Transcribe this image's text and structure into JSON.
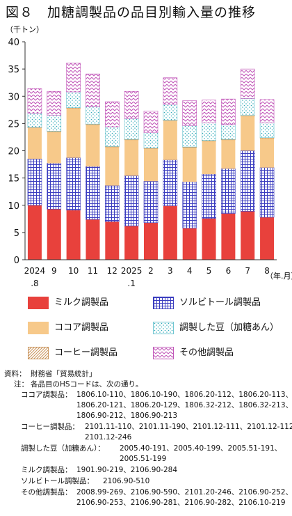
{
  "title": "図８　加糖調製品の品目別輸入量の推移",
  "unit_label": "（千トン）",
  "x_unit_label": "（年.月）",
  "colors": {
    "milk": "#e8413c",
    "sorbitol": "#3b3dbf",
    "cocoa": "#f7c98a",
    "bean": "#6fc6d1",
    "coffee": "#c9935a",
    "other": "#c155b8"
  },
  "legend": [
    {
      "key": "milk",
      "label": "ミルク調製品",
      "pattern": "solid"
    },
    {
      "key": "sorbitol",
      "label": "ソルビトール調製品",
      "pattern": "grid"
    },
    {
      "key": "cocoa",
      "label": "ココア調製品",
      "pattern": "solid"
    },
    {
      "key": "bean",
      "label": "調製した豆（加糖あん）",
      "pattern": "dots"
    },
    {
      "key": "coffee",
      "label": "コーヒー調製品",
      "pattern": "diagonal"
    },
    {
      "key": "other",
      "label": "その他調製品",
      "pattern": "zigzag"
    }
  ],
  "chart_data": {
    "type": "bar",
    "stacked": true,
    "categories": [
      "2024.8",
      "9",
      "10",
      "11",
      "12",
      "2025.1",
      "2",
      "3",
      "4",
      "5",
      "6",
      "7",
      "8"
    ],
    "x_tick_lines": [
      [
        "2024",
        ".8"
      ],
      [
        "9"
      ],
      [
        "10"
      ],
      [
        "11"
      ],
      [
        "12"
      ],
      [
        "2025",
        ".1"
      ],
      [
        "2"
      ],
      [
        "3"
      ],
      [
        "4"
      ],
      [
        "5"
      ],
      [
        "6"
      ],
      [
        "7"
      ],
      [
        "8"
      ]
    ],
    "ylabel": "（千トン）",
    "xlabel": "（年.月）",
    "ylim": [
      0,
      40
    ],
    "yticks": [
      0,
      5,
      10,
      15,
      20,
      25,
      30,
      35,
      40
    ],
    "grid": false,
    "series": [
      {
        "key": "milk",
        "name": "ミルク調製品",
        "values": [
          10.0,
          9.3,
          9.1,
          7.4,
          7.0,
          6.2,
          6.8,
          9.9,
          5.8,
          7.6,
          8.5,
          8.9,
          7.8
        ]
      },
      {
        "key": "sorbitol",
        "name": "ソルビトール調製品",
        "values": [
          8.5,
          8.4,
          9.6,
          9.7,
          6.6,
          9.2,
          7.6,
          8.4,
          8.5,
          8.1,
          8.2,
          11.1,
          9.1
        ]
      },
      {
        "key": "cocoa",
        "name": "ココア調製品",
        "values": [
          5.7,
          5.8,
          9.1,
          7.7,
          7.1,
          6.6,
          6.0,
          7.2,
          6.3,
          6.1,
          5.3,
          6.4,
          5.4
        ]
      },
      {
        "key": "coffee",
        "name": "コーヒー調製品",
        "values": [
          0.1,
          0.1,
          0.1,
          0.1,
          0.1,
          0.1,
          0.1,
          0.1,
          0.1,
          0.1,
          0.1,
          0.1,
          0.1
        ]
      },
      {
        "key": "bean",
        "name": "調製した豆（加糖あん）",
        "values": [
          2.6,
          2.9,
          2.9,
          3.2,
          3.6,
          3.8,
          2.8,
          2.9,
          3.9,
          3.2,
          2.7,
          3.1,
          2.7
        ]
      },
      {
        "key": "other",
        "name": "その他調製品",
        "values": [
          4.5,
          4.4,
          5.3,
          6.0,
          4.6,
          5.0,
          4.0,
          4.9,
          4.6,
          4.2,
          4.7,
          5.4,
          4.3
        ]
      }
    ]
  },
  "notes": {
    "source_label": "資料：",
    "source_text": "財務省「貿易統計」",
    "note_label": "注：",
    "note_intro": "各品目のHSコードは、次の通り。",
    "cocoa_label": "ココア調製品：",
    "cocoa_codes_1": "1806.10-110、1806.10-190、1806.20-112、1806.20-113、",
    "cocoa_codes_2": "1806.20-121、1806.20-129、1806.32-212、1806.32-213、",
    "cocoa_codes_3": "1806.90-212、1806.90-213",
    "coffee_label": "コーヒー調製品：",
    "coffee_codes_1": "2101.11-110、2101.11-190、2101.12-111、2101.12-112、",
    "coffee_codes_2": "2101.12-246",
    "bean_label": "調製した豆（加糖あん）：",
    "bean_codes_1": "2005.40-191、2005.40-199、2005.51-191、",
    "bean_codes_2": "2005.51-199",
    "milk_label": "ミルク調製品：",
    "milk_codes": "1901.90-219、2106.90-284",
    "sorbitol_label": "ソルビトール調製品：",
    "sorbitol_codes": "2106.90-510",
    "other_label": "その他調製品：",
    "other_codes_1": "2008.99-269、2106.90-590、2101.20-246、2106.90-252、",
    "other_codes_2": "2106.90-253、2106.90-281、2106.90-282、2106.10-219"
  }
}
